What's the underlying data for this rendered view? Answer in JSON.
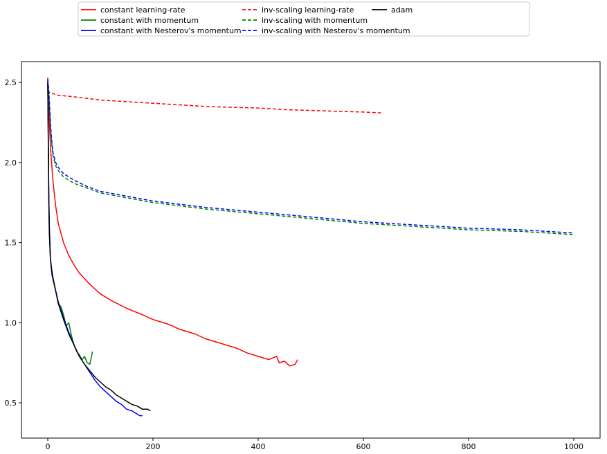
{
  "chart_data": {
    "type": "line",
    "title": "",
    "xlabel": "",
    "ylabel": "",
    "xlim": [
      -50,
      1050
    ],
    "ylim": [
      0.28,
      2.63
    ],
    "xticks": [
      0,
      200,
      400,
      600,
      800,
      1000
    ],
    "yticks": [
      0.5,
      1.0,
      1.5,
      2.0,
      2.5
    ],
    "xtick_labels": [
      "0",
      "200",
      "400",
      "600",
      "800",
      "1000"
    ],
    "ytick_labels": [
      "0.5",
      "1.0",
      "1.5",
      "2.0",
      "2.5"
    ],
    "grid": false,
    "legend_placement": "top-center, above plot, 3 columns",
    "series": [
      {
        "name": "constant learning-rate",
        "color": "#ff0000",
        "style": "solid",
        "x": [
          0,
          2,
          5,
          10,
          15,
          20,
          30,
          40,
          50,
          60,
          80,
          100,
          120,
          150,
          180,
          200,
          230,
          250,
          280,
          300,
          330,
          360,
          380,
          400,
          420,
          435,
          440,
          450,
          460,
          470,
          475
        ],
        "y": [
          2.53,
          2.35,
          2.1,
          1.88,
          1.73,
          1.62,
          1.5,
          1.42,
          1.36,
          1.31,
          1.24,
          1.18,
          1.14,
          1.09,
          1.05,
          1.02,
          0.99,
          0.96,
          0.93,
          0.9,
          0.87,
          0.84,
          0.81,
          0.79,
          0.77,
          0.79,
          0.75,
          0.76,
          0.73,
          0.74,
          0.77
        ]
      },
      {
        "name": "constant with momentum",
        "color": "#008000",
        "style": "solid",
        "x": [
          0,
          1,
          2,
          3,
          5,
          8,
          10,
          15,
          20,
          25,
          30,
          35,
          40,
          45,
          50,
          55,
          60,
          65,
          70,
          75,
          80,
          85
        ],
        "y": [
          2.5,
          2.15,
          1.8,
          1.6,
          1.4,
          1.3,
          1.27,
          1.2,
          1.12,
          1.1,
          1.05,
          0.98,
          1.0,
          0.92,
          0.86,
          0.82,
          0.8,
          0.77,
          0.79,
          0.75,
          0.74,
          0.82
        ]
      },
      {
        "name": "constant with Nesterov's momentum",
        "color": "#0000ff",
        "style": "solid",
        "x": [
          0,
          1,
          2,
          3,
          5,
          8,
          10,
          15,
          20,
          25,
          30,
          40,
          50,
          60,
          70,
          80,
          90,
          100,
          110,
          120,
          130,
          140,
          150,
          160,
          170,
          175,
          180
        ],
        "y": [
          2.52,
          2.15,
          1.8,
          1.6,
          1.4,
          1.3,
          1.27,
          1.2,
          1.13,
          1.08,
          1.03,
          0.94,
          0.86,
          0.79,
          0.74,
          0.69,
          0.64,
          0.6,
          0.57,
          0.54,
          0.51,
          0.49,
          0.46,
          0.45,
          0.43,
          0.42,
          0.42
        ]
      },
      {
        "name": "inv-scaling learning-rate",
        "color": "#ff0000",
        "style": "dashed",
        "x": [
          0,
          2,
          5,
          10,
          20,
          50,
          100,
          150,
          200,
          250,
          300,
          350,
          400,
          450,
          500,
          550,
          600,
          635
        ],
        "y": [
          2.52,
          2.44,
          2.43,
          2.43,
          2.42,
          2.41,
          2.39,
          2.38,
          2.37,
          2.36,
          2.35,
          2.345,
          2.34,
          2.33,
          2.325,
          2.32,
          2.315,
          2.31
        ]
      },
      {
        "name": "inv-scaling with momentum",
        "color": "#008000",
        "style": "dashed",
        "x": [
          0,
          2,
          4,
          6,
          8,
          10,
          15,
          20,
          30,
          50,
          75,
          100,
          150,
          200,
          300,
          400,
          500,
          600,
          700,
          800,
          900,
          1000
        ],
        "y": [
          2.5,
          2.43,
          2.3,
          2.18,
          2.1,
          2.04,
          1.98,
          1.95,
          1.91,
          1.87,
          1.84,
          1.81,
          1.78,
          1.75,
          1.71,
          1.68,
          1.65,
          1.62,
          1.6,
          1.58,
          1.57,
          1.55
        ]
      },
      {
        "name": "inv-scaling with Nesterov's momentum",
        "color": "#0000ff",
        "style": "dashed",
        "x": [
          0,
          2,
          4,
          6,
          8,
          10,
          15,
          20,
          30,
          50,
          75,
          100,
          150,
          200,
          300,
          400,
          500,
          600,
          700,
          800,
          900,
          1000
        ],
        "y": [
          2.52,
          2.45,
          2.32,
          2.2,
          2.12,
          2.06,
          2.0,
          1.97,
          1.93,
          1.89,
          1.85,
          1.82,
          1.79,
          1.76,
          1.72,
          1.69,
          1.66,
          1.63,
          1.61,
          1.59,
          1.58,
          1.56
        ]
      },
      {
        "name": "adam",
        "color": "#000000",
        "style": "solid",
        "x": [
          0,
          1,
          2,
          3,
          5,
          8,
          10,
          15,
          20,
          30,
          40,
          50,
          60,
          70,
          80,
          90,
          100,
          110,
          120,
          130,
          140,
          150,
          160,
          170,
          180,
          190,
          195
        ],
        "y": [
          2.5,
          2.1,
          1.75,
          1.55,
          1.4,
          1.32,
          1.28,
          1.2,
          1.12,
          1.02,
          0.93,
          0.86,
          0.79,
          0.74,
          0.7,
          0.66,
          0.63,
          0.6,
          0.58,
          0.55,
          0.53,
          0.51,
          0.49,
          0.48,
          0.46,
          0.46,
          0.45
        ]
      }
    ]
  }
}
